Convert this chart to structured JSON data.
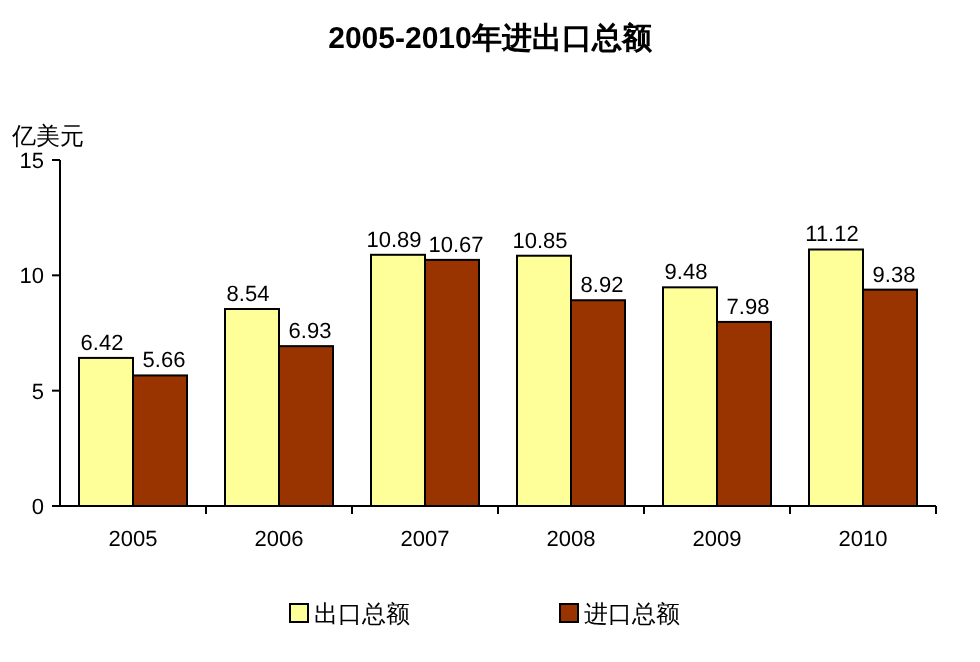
{
  "chart_data": {
    "type": "bar",
    "title": "2005-2010年进出口总额",
    "ylabel": "亿美元",
    "categories": [
      "2005",
      "2006",
      "2007",
      "2008",
      "2009",
      "2010"
    ],
    "series": [
      {
        "name": "出口总额",
        "color": "#ffff99",
        "values": [
          6.42,
          8.54,
          10.89,
          10.85,
          9.48,
          11.12
        ]
      },
      {
        "name": "进口总额",
        "color": "#993300",
        "values": [
          5.66,
          6.93,
          10.67,
          8.92,
          7.98,
          9.38
        ]
      }
    ],
    "ylim": [
      0,
      15
    ],
    "yticks": [
      0,
      5,
      10,
      15
    ],
    "data_labels": true,
    "legend": "bottom"
  }
}
